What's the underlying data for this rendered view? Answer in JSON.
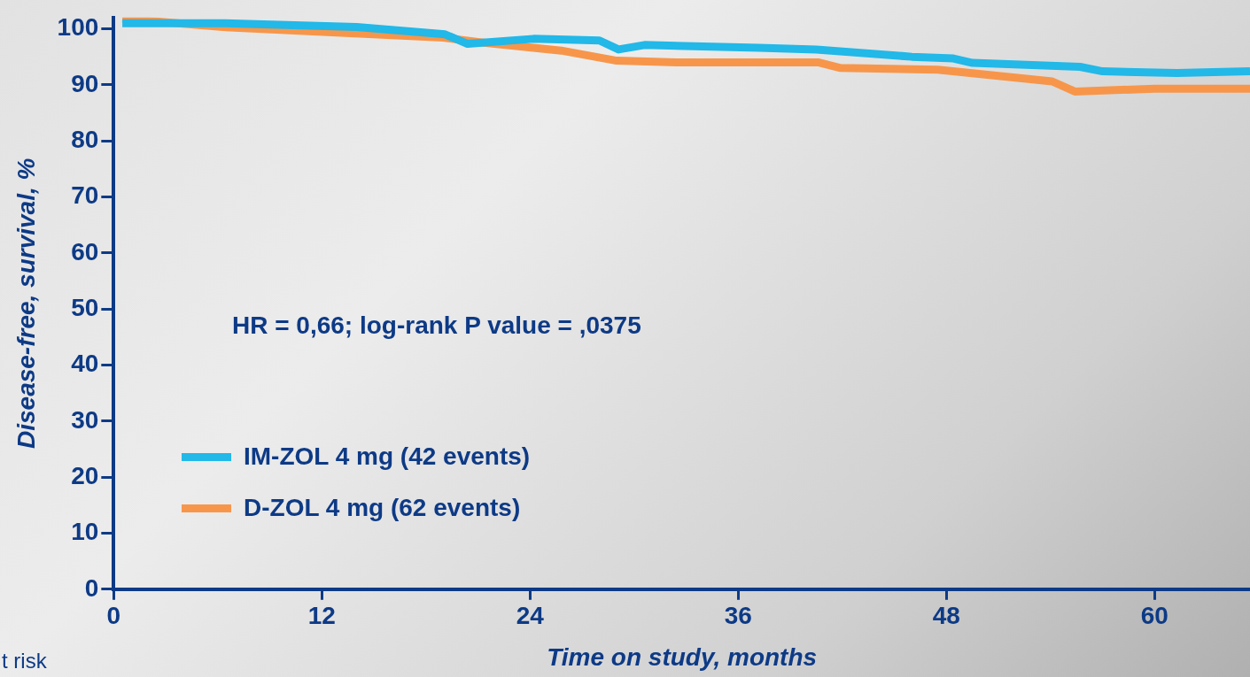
{
  "chart_data": {
    "type": "line",
    "xlabel": "Time on study, months",
    "ylabel": "Disease-free, survival, %",
    "xlim": [
      0,
      65.5
    ],
    "xticks": [
      0,
      12,
      24,
      36,
      48,
      60
    ],
    "ylim": [
      0,
      102
    ],
    "yticks": [
      0,
      10,
      20,
      30,
      40,
      50,
      60,
      70,
      80,
      90,
      100
    ],
    "grid": false,
    "legend": "bottom left",
    "marker": "none",
    "line_style": "solid",
    "annotations": [
      {
        "text": "HR = 0,66; log-rank P value = ,0375"
      },
      {
        "text": "t risk"
      }
    ],
    "series": [
      {
        "name": "IM-ZOL 4 mg (42 events)",
        "color": "#22b8e8",
        "x": [
          0.5,
          6.3,
          14,
          19.1,
          20.4,
          24.2,
          28,
          29.1,
          30.6,
          37.2,
          40.5,
          46,
          48.4,
          49.5,
          55.7,
          57,
          61.3,
          65.5
        ],
        "values": [
          101,
          101,
          100.3,
          99,
          97.3,
          98.2,
          97.9,
          96.3,
          97.1,
          96.6,
          96.3,
          95,
          94.7,
          93.9,
          93.2,
          92.4,
          92.1,
          92.4
        ]
      },
      {
        "name": "D-ZOL 4 mg (62 events)",
        "color": "#f7964a",
        "x": [
          0.5,
          6.3,
          19,
          21.1,
          25.8,
          29,
          32.5,
          40.6,
          41.9,
          47.5,
          54.1,
          55.4,
          60,
          65.5
        ],
        "values": [
          101.8,
          100.3,
          98.4,
          97.6,
          96.1,
          94.3,
          94,
          94,
          93,
          92.7,
          90.6,
          88.8,
          89.3,
          89.3
        ]
      }
    ]
  }
}
